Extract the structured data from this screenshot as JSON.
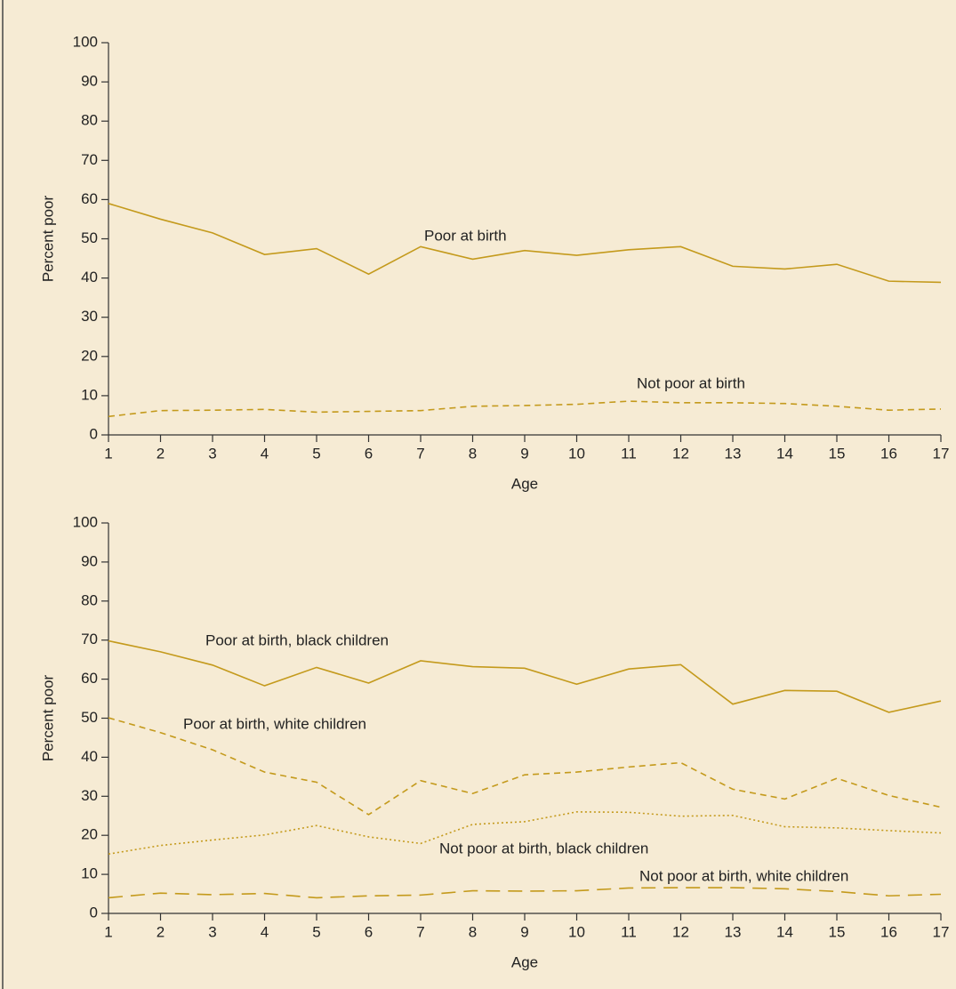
{
  "chart_data": [
    {
      "type": "line",
      "xlabel": "Age",
      "ylabel": "Percent poor",
      "x": [
        1,
        2,
        3,
        4,
        5,
        6,
        7,
        8,
        9,
        10,
        11,
        12,
        13,
        14,
        15,
        16,
        17
      ],
      "xlim": [
        1,
        17
      ],
      "xticks": [
        1,
        2,
        3,
        4,
        5,
        6,
        7,
        8,
        9,
        10,
        11,
        12,
        13,
        14,
        15,
        16,
        17
      ],
      "ylim": [
        0,
        100
      ],
      "yticks": [
        0,
        10,
        20,
        30,
        40,
        50,
        60,
        70,
        80,
        90,
        100
      ],
      "series": [
        {
          "name": "Poor at birth",
          "color": "#c49a1c",
          "dash": "solid",
          "values": [
            59,
            55,
            51.5,
            46,
            47.5,
            41,
            48,
            44.8,
            47,
            45.8,
            47.2,
            48,
            43,
            42.3,
            43.5,
            39.2,
            38.9
          ]
        },
        {
          "name": "Not poor at birth",
          "color": "#c49a1c",
          "dash": "dashed",
          "values": [
            4.7,
            6.2,
            6.3,
            6.5,
            5.8,
            6,
            6.2,
            7.3,
            7.5,
            7.8,
            8.6,
            8.2,
            8.2,
            8,
            7.3,
            6.3,
            6.6
          ]
        }
      ]
    },
    {
      "type": "line",
      "xlabel": "Age",
      "ylabel": "Percent poor",
      "x": [
        1,
        2,
        3,
        4,
        5,
        6,
        7,
        8,
        9,
        10,
        11,
        12,
        13,
        14,
        15,
        16,
        17
      ],
      "xlim": [
        1,
        17
      ],
      "xticks": [
        1,
        2,
        3,
        4,
        5,
        6,
        7,
        8,
        9,
        10,
        11,
        12,
        13,
        14,
        15,
        16,
        17
      ],
      "ylim": [
        0,
        100
      ],
      "yticks": [
        0,
        10,
        20,
        30,
        40,
        50,
        60,
        70,
        80,
        90,
        100
      ],
      "series": [
        {
          "name": "Poor at birth, black children",
          "color": "#c49a1c",
          "dash": "solid",
          "values": [
            69.8,
            67,
            63.6,
            58.3,
            63,
            59,
            64.7,
            63.2,
            62.8,
            58.7,
            62.6,
            63.7,
            53.6,
            57.1,
            56.9,
            51.5,
            54.4
          ]
        },
        {
          "name": "Poor at birth, white children",
          "color": "#c49a1c",
          "dash": "dashed",
          "values": [
            50.1,
            46.3,
            41.9,
            36.2,
            33.6,
            25.3,
            34,
            30.7,
            35.5,
            36.2,
            37.5,
            38.6,
            31.8,
            29.3,
            34.6,
            30.2,
            27.2
          ]
        },
        {
          "name": "Not poor at birth, black children",
          "color": "#c49a1c",
          "dash": "dotted",
          "values": [
            15.2,
            17.4,
            18.8,
            20.1,
            22.5,
            19.6,
            17.9,
            22.8,
            23.5,
            26,
            25.9,
            24.9,
            25.1,
            22.2,
            21.9,
            21.2,
            20.6
          ]
        },
        {
          "name": "Not poor at birth, white children",
          "color": "#c49a1c",
          "dash": "longdash",
          "values": [
            4,
            5.2,
            4.8,
            5.1,
            4,
            4.5,
            4.7,
            5.8,
            5.7,
            5.8,
            6.5,
            6.6,
            6.6,
            6.3,
            5.6,
            4.5,
            4.9
          ]
        }
      ]
    }
  ]
}
